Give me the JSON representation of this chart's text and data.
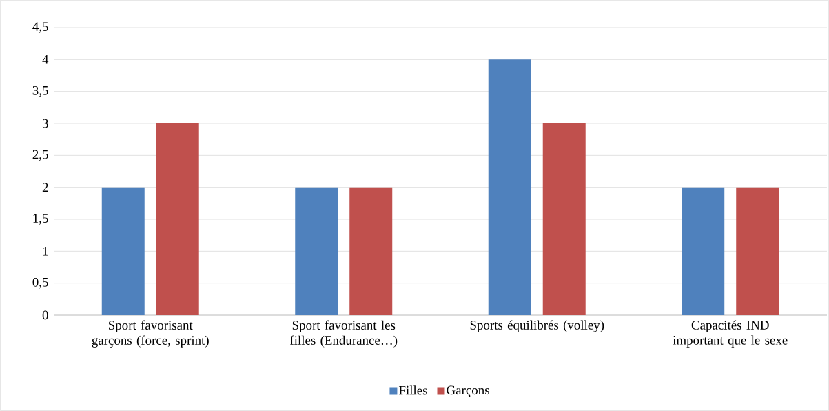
{
  "chart_data": {
    "type": "bar",
    "categories": [
      "Sport favorisant garçons (force, sprint)",
      "Sport favorisant les filles (Endurance…)",
      "Sports équilibrés (volley)",
      "Capacités IND important que le sexe"
    ],
    "series": [
      {
        "name": "Filles",
        "color": "#4f81bd",
        "values": [
          2,
          2,
          4,
          2
        ]
      },
      {
        "name": "Garçons",
        "color": "#c0504d",
        "values": [
          3,
          2,
          3,
          2
        ]
      }
    ],
    "ylim": [
      0,
      4.5
    ],
    "yticks": [
      0,
      {
        "value": 0.5,
        "label": "0,5"
      },
      1,
      {
        "value": 1.5,
        "label": "1,5"
      },
      2,
      {
        "value": 2.5,
        "label": "2,5"
      },
      3,
      {
        "value": 3.5,
        "label": "3,5"
      },
      4,
      {
        "value": 4.5,
        "label": "4,5"
      }
    ],
    "grid": "y",
    "legend": "bottom"
  }
}
